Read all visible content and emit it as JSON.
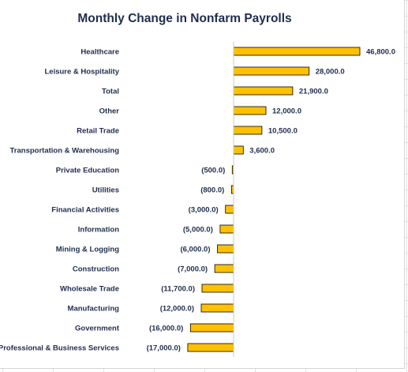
{
  "chart_data": {
    "type": "bar",
    "orientation": "horizontal",
    "title": "Monthly Change in Nonfarm Payrolls",
    "categories": [
      "Healthcare",
      "Leisure & Hospitality",
      "Total",
      "Other",
      "Retail Trade",
      "Transportation & Warehousing",
      "Private Education",
      "Utilities",
      "Financial Activities",
      "Information",
      "Mining & Logging",
      "Construction",
      "Wholesale Trade",
      "Manufacturing",
      "Government",
      "Professional & Business Services"
    ],
    "values": [
      46800,
      28000,
      21900,
      12000,
      10500,
      3600,
      -500,
      -800,
      -3000,
      -5000,
      -6000,
      -7000,
      -11700,
      -12000,
      -16000,
      -17000
    ],
    "data_labels": [
      "46,800.0",
      "28,000.0",
      "21,900.0",
      "12,000.0",
      "10,500.0",
      "3,600.0",
      "(500.0)",
      "(800.0)",
      "(3,000.0)",
      "(5,000.0)",
      "(6,000.0)",
      "(7,000.0)",
      "(11,700.0)",
      "(12,000.0)",
      "(16,000.0)",
      "(17,000.0)"
    ],
    "xlim": [
      -17000,
      46800
    ],
    "grid": false,
    "legend": "none",
    "bar_color": "#ffc000",
    "bar_border_color": "#000000",
    "axis_color": "#c8c8c8"
  }
}
